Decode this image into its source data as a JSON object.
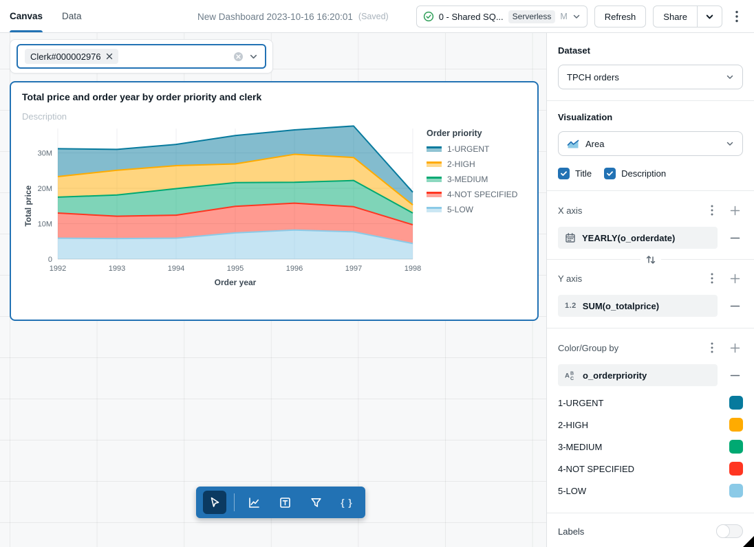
{
  "header": {
    "tabs": [
      {
        "label": "Canvas",
        "active": true
      },
      {
        "label": "Data",
        "active": false
      }
    ],
    "title": "New Dashboard 2023-10-16 16:20:01",
    "saved_label": "(Saved)",
    "warehouse": {
      "name": "0 - Shared SQ...",
      "badge": "Serverless",
      "size": "M"
    },
    "refresh_label": "Refresh",
    "share_label": "Share"
  },
  "canvas": {
    "filter": {
      "chip": "Clerk#000002976"
    },
    "widget": {
      "title": "Total price and order year by order priority and clerk",
      "description_placeholder": "Description"
    },
    "toolbar": {
      "tools": [
        "cursor",
        "chart",
        "textbox",
        "filter",
        "code"
      ],
      "selected": "cursor",
      "code_glyph": "{ }"
    }
  },
  "chart_data": {
    "type": "area",
    "stacked": true,
    "title": "Total price and order year by order priority and clerk",
    "x": [
      1992,
      1993,
      1994,
      1995,
      1996,
      1997,
      1998
    ],
    "xlabel": "Order year",
    "ylabel": "Total price",
    "values_unit": "millions",
    "ylim": [
      0,
      40
    ],
    "yticks": [
      0,
      10,
      20,
      30
    ],
    "ytick_suffix": "M",
    "grid": true,
    "legend_title": "Order priority",
    "legend_position": "right",
    "series": [
      {
        "name": "1-URGENT",
        "color": "#077A9D",
        "values": [
          7.9,
          5.9,
          6.0,
          8.0,
          6.9,
          8.9,
          3.6
        ]
      },
      {
        "name": "2-HIGH",
        "color": "#FFAB00",
        "values": [
          5.8,
          7.0,
          6.5,
          5.3,
          7.9,
          6.5,
          2.3
        ]
      },
      {
        "name": "3-MEDIUM",
        "color": "#00A972",
        "values": [
          4.5,
          6.0,
          7.5,
          6.7,
          5.9,
          7.4,
          3.3
        ]
      },
      {
        "name": "4-NOT SPECIFIED",
        "color": "#FF3621",
        "values": [
          7.1,
          6.3,
          6.5,
          7.5,
          7.6,
          7.1,
          5.3
        ]
      },
      {
        "name": "5-LOW",
        "color": "#8BCAE7",
        "values": [
          5.9,
          5.8,
          5.9,
          7.4,
          8.2,
          7.7,
          4.4
        ]
      }
    ],
    "stack_order_bottom_to_top": [
      "5-LOW",
      "4-NOT SPECIFIED",
      "3-MEDIUM",
      "2-HIGH",
      "1-URGENT"
    ]
  },
  "panel": {
    "dataset": {
      "label": "Dataset",
      "value": "TPCH orders"
    },
    "visualization": {
      "label": "Visualization",
      "value": "Area"
    },
    "checkboxes": [
      {
        "label": "Title",
        "checked": true
      },
      {
        "label": "Description",
        "checked": true
      }
    ],
    "x_axis": {
      "label": "X axis",
      "field": "YEARLY(o_orderdate)",
      "field_type": "date"
    },
    "y_axis": {
      "label": "Y axis",
      "field": "SUM(o_totalprice)",
      "field_type": "number",
      "icon_text": "1.2"
    },
    "color_group": {
      "label": "Color/Group by",
      "field": "o_orderpriority",
      "field_type": "string",
      "categories": [
        {
          "label": "1-URGENT",
          "color": "#077A9D"
        },
        {
          "label": "2-HIGH",
          "color": "#FFAB00"
        },
        {
          "label": "3-MEDIUM",
          "color": "#00A972"
        },
        {
          "label": "4-NOT SPECIFIED",
          "color": "#FF3621"
        },
        {
          "label": "5-LOW",
          "color": "#8BCAE7"
        }
      ]
    },
    "labels": {
      "label": "Labels",
      "enabled": false
    }
  }
}
